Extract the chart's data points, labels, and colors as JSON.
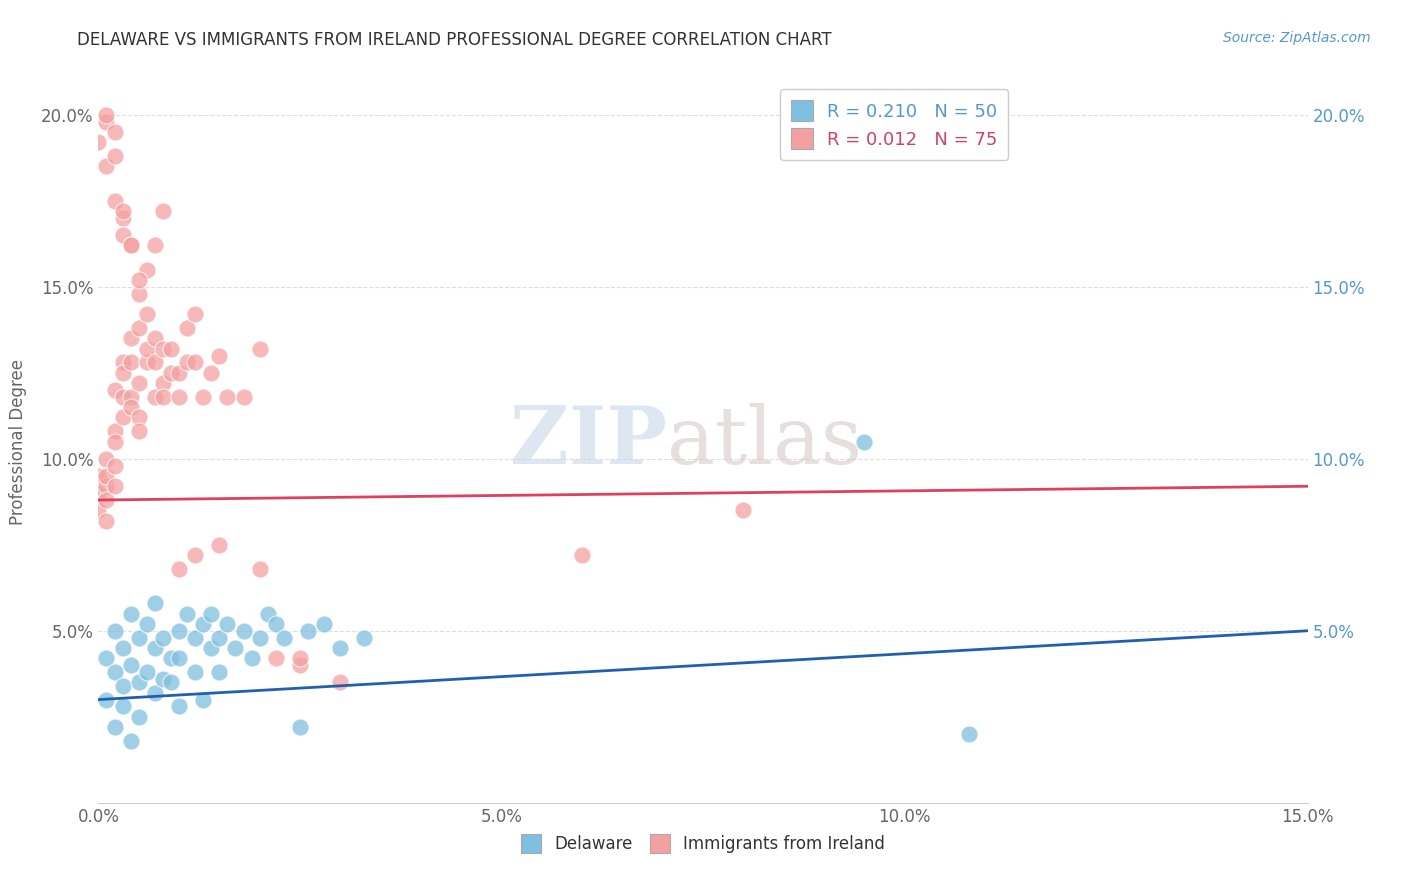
{
  "title": "DELAWARE VS IMMIGRANTS FROM IRELAND PROFESSIONAL DEGREE CORRELATION CHART",
  "source": "Source: ZipAtlas.com",
  "ylabel_text": "Professional Degree",
  "xlim": [
    0,
    0.15
  ],
  "ylim": [
    0,
    0.21
  ],
  "xticks": [
    0.0,
    0.05,
    0.1,
    0.15
  ],
  "xticklabels": [
    "0.0%",
    "5.0%",
    "10.0%",
    "15.0%"
  ],
  "yticks_left": [
    0.05,
    0.1,
    0.15,
    0.2
  ],
  "yticklabels_left": [
    "5.0%",
    "10.0%",
    "15.0%",
    "20.0%"
  ],
  "yticks_right": [
    0.05,
    0.1,
    0.15,
    0.2
  ],
  "yticklabels_right": [
    "5.0%",
    "10.0%",
    "15.0%",
    "20.0%"
  ],
  "delaware_color": "#7fbfdf",
  "ireland_color": "#f4a0a0",
  "delaware_line_color": "#2060b0",
  "ireland_line_color": "#e04060",
  "delaware_R": 0.21,
  "delaware_N": 50,
  "ireland_R": 0.012,
  "ireland_N": 75,
  "legend_label_delaware": "Delaware",
  "legend_label_ireland": "Immigrants from Ireland",
  "watermark_zip": "ZIP",
  "watermark_atlas": "atlas",
  "delaware_x": [
    0.001,
    0.001,
    0.002,
    0.002,
    0.002,
    0.003,
    0.003,
    0.003,
    0.004,
    0.004,
    0.004,
    0.005,
    0.005,
    0.005,
    0.006,
    0.006,
    0.007,
    0.007,
    0.007,
    0.008,
    0.008,
    0.009,
    0.009,
    0.01,
    0.01,
    0.01,
    0.011,
    0.012,
    0.012,
    0.013,
    0.013,
    0.014,
    0.014,
    0.015,
    0.015,
    0.016,
    0.017,
    0.018,
    0.019,
    0.02,
    0.021,
    0.022,
    0.023,
    0.025,
    0.026,
    0.028,
    0.03,
    0.033,
    0.095,
    0.108
  ],
  "delaware_y": [
    0.03,
    0.042,
    0.022,
    0.038,
    0.05,
    0.034,
    0.045,
    0.028,
    0.055,
    0.04,
    0.018,
    0.048,
    0.035,
    0.025,
    0.052,
    0.038,
    0.045,
    0.032,
    0.058,
    0.036,
    0.048,
    0.042,
    0.035,
    0.05,
    0.042,
    0.028,
    0.055,
    0.048,
    0.038,
    0.052,
    0.03,
    0.045,
    0.055,
    0.038,
    0.048,
    0.052,
    0.045,
    0.05,
    0.042,
    0.048,
    0.055,
    0.052,
    0.048,
    0.022,
    0.05,
    0.052,
    0.045,
    0.048,
    0.105,
    0.02
  ],
  "ireland_x": [
    0.0,
    0.0,
    0.0,
    0.001,
    0.001,
    0.001,
    0.001,
    0.001,
    0.002,
    0.002,
    0.002,
    0.002,
    0.002,
    0.003,
    0.003,
    0.003,
    0.003,
    0.004,
    0.004,
    0.004,
    0.004,
    0.005,
    0.005,
    0.005,
    0.005,
    0.006,
    0.006,
    0.006,
    0.007,
    0.007,
    0.007,
    0.008,
    0.008,
    0.008,
    0.009,
    0.009,
    0.01,
    0.01,
    0.011,
    0.011,
    0.012,
    0.012,
    0.013,
    0.014,
    0.015,
    0.016,
    0.018,
    0.02,
    0.022,
    0.025,
    0.0,
    0.001,
    0.001,
    0.002,
    0.002,
    0.003,
    0.003,
    0.004,
    0.005,
    0.006,
    0.007,
    0.008,
    0.01,
    0.012,
    0.015,
    0.02,
    0.025,
    0.03,
    0.06,
    0.08,
    0.001,
    0.002,
    0.003,
    0.004,
    0.005
  ],
  "ireland_y": [
    0.09,
    0.085,
    0.095,
    0.1,
    0.092,
    0.088,
    0.082,
    0.095,
    0.12,
    0.108,
    0.098,
    0.092,
    0.105,
    0.128,
    0.118,
    0.112,
    0.125,
    0.135,
    0.128,
    0.118,
    0.115,
    0.138,
    0.122,
    0.112,
    0.108,
    0.128,
    0.142,
    0.132,
    0.135,
    0.118,
    0.128,
    0.132,
    0.122,
    0.118,
    0.132,
    0.125,
    0.125,
    0.118,
    0.138,
    0.128,
    0.142,
    0.128,
    0.118,
    0.125,
    0.13,
    0.118,
    0.118,
    0.132,
    0.042,
    0.04,
    0.192,
    0.185,
    0.198,
    0.175,
    0.188,
    0.17,
    0.165,
    0.162,
    0.148,
    0.155,
    0.162,
    0.172,
    0.068,
    0.072,
    0.075,
    0.068,
    0.042,
    0.035,
    0.072,
    0.085,
    0.2,
    0.195,
    0.172,
    0.162,
    0.152
  ]
}
